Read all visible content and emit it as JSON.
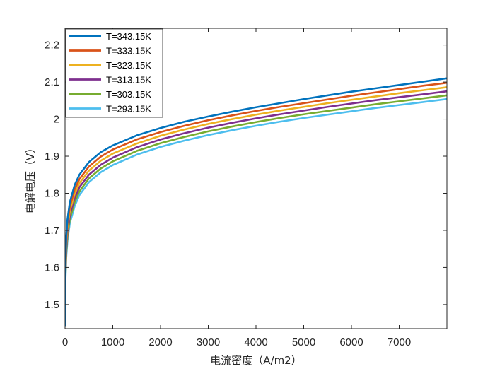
{
  "chart_data": {
    "type": "line",
    "title": "",
    "xlabel": "电流密度（A/m2）",
    "ylabel": "电解电压（V）",
    "xlim": [
      0,
      8000
    ],
    "ylim": [
      1.435,
      2.245
    ],
    "xticks": [
      0,
      1000,
      2000,
      3000,
      4000,
      5000,
      6000,
      7000
    ],
    "yticks": [
      1.5,
      1.6,
      1.7,
      1.8,
      1.9,
      2.0,
      2.1,
      2.2
    ],
    "xtick_labels": [
      "0",
      "1000",
      "2000",
      "3000",
      "4000",
      "5000",
      "6000",
      "7000"
    ],
    "ytick_labels": [
      "1.5",
      "1.6",
      "1.7",
      "1.8",
      "1.9",
      "2",
      "2.1",
      "2.2"
    ],
    "grid": false,
    "legend_position": "top-left",
    "x": [
      0,
      10,
      25,
      50,
      100,
      200,
      300,
      500,
      750,
      1000,
      1500,
      2000,
      2500,
      3000,
      3500,
      4000,
      4500,
      5000,
      5500,
      6000,
      6500,
      7000,
      7500,
      8000
    ],
    "series": [
      {
        "name": "T=343.15K",
        "color": "#0072BD",
        "values": [
          1.44,
          1.62,
          1.682,
          1.729,
          1.776,
          1.822,
          1.85,
          1.884,
          1.911,
          1.929,
          1.956,
          1.976,
          1.993,
          2.007,
          2.02,
          2.032,
          2.043,
          2.054,
          2.064,
          2.074,
          2.083,
          2.092,
          2.101,
          2.11
        ]
      },
      {
        "name": "T=333.15K",
        "color": "#D95319",
        "values": [
          1.44,
          1.61,
          1.671,
          1.717,
          1.764,
          1.81,
          1.838,
          1.872,
          1.899,
          1.918,
          1.945,
          1.965,
          1.982,
          1.997,
          2.01,
          2.022,
          2.033,
          2.043,
          2.053,
          2.063,
          2.072,
          2.081,
          2.09,
          2.098
        ]
      },
      {
        "name": "T=323.15K",
        "color": "#EDB120",
        "values": [
          1.44,
          1.6,
          1.66,
          1.705,
          1.752,
          1.798,
          1.827,
          1.861,
          1.888,
          1.907,
          1.934,
          1.955,
          1.972,
          1.987,
          2.0,
          2.012,
          2.023,
          2.033,
          2.043,
          2.052,
          2.061,
          2.07,
          2.078,
          2.086
        ]
      },
      {
        "name": "T=313.15K",
        "color": "#7E2F8E",
        "values": [
          1.44,
          1.59,
          1.649,
          1.694,
          1.741,
          1.787,
          1.816,
          1.85,
          1.877,
          1.896,
          1.924,
          1.945,
          1.962,
          1.977,
          1.99,
          2.002,
          2.013,
          2.023,
          2.033,
          2.042,
          2.051,
          2.059,
          2.067,
          2.075
        ]
      },
      {
        "name": "T=303.15K",
        "color": "#77AC30",
        "values": [
          1.44,
          1.58,
          1.638,
          1.683,
          1.73,
          1.776,
          1.805,
          1.84,
          1.867,
          1.886,
          1.914,
          1.935,
          1.952,
          1.967,
          1.98,
          1.992,
          2.003,
          2.013,
          2.022,
          2.031,
          2.04,
          2.048,
          2.056,
          2.064
        ]
      },
      {
        "name": "T=293.15K",
        "color": "#4DBEEE",
        "values": [
          1.44,
          1.57,
          1.627,
          1.672,
          1.719,
          1.765,
          1.795,
          1.83,
          1.857,
          1.876,
          1.904,
          1.925,
          1.942,
          1.957,
          1.97,
          1.982,
          1.993,
          2.003,
          2.012,
          2.021,
          2.03,
          2.038,
          2.046,
          2.054
        ]
      }
    ]
  }
}
